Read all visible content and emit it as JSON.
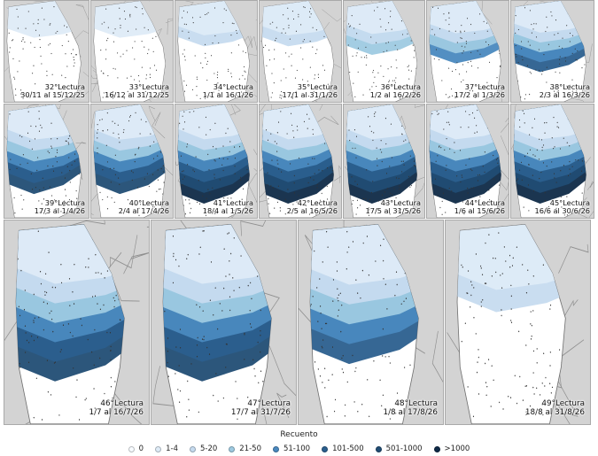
{
  "figure": {
    "rows": [
      [
        {
          "reading": "32°Lectura",
          "dates": "30/11 al 15/12/25",
          "level": 1
        },
        {
          "reading": "33°Lectura",
          "dates": "16/12 al 31/12/25",
          "level": 1
        },
        {
          "reading": "34°Lectura",
          "dates": "1/1 al 16/1/26",
          "level": 2
        },
        {
          "reading": "35°Lectura",
          "dates": "17/1 al 31/1/26",
          "level": 2
        },
        {
          "reading": "36°Lectura",
          "dates": "1/2 al 16/2/26",
          "level": 3
        },
        {
          "reading": "37°Lectura",
          "dates": "17/2 al 1/3/26",
          "level": 4
        },
        {
          "reading": "38°Lectura",
          "dates": "2/3 al 16/3/26",
          "level": 5
        }
      ],
      [
        {
          "reading": "39°Lectura",
          "dates": "17/3 al 1/4/26",
          "level": 6
        },
        {
          "reading": "40°Lectura",
          "dates": "2/4 al 17/4/26",
          "level": 6
        },
        {
          "reading": "41°Lectura",
          "dates": "18/4 al 1/5/26",
          "level": 7
        },
        {
          "reading": "42°Lectura",
          "dates": "2/5 al 16/5/26",
          "level": 7
        },
        {
          "reading": "43°Lectura",
          "dates": "17/5 al 31/5/26",
          "level": 7
        },
        {
          "reading": "44°Lectura",
          "dates": "1/6 al 15/6/26",
          "level": 7
        },
        {
          "reading": "45°Lectura",
          "dates": "16/6 al 30/6/26",
          "level": 7
        }
      ],
      [
        {
          "reading": "46°Lectura",
          "dates": "1/7 al 16/7/26",
          "level": 6
        },
        {
          "reading": "47°Lectura",
          "dates": "17/7 al 31/7/26",
          "level": 6
        },
        {
          "reading": "48°Lectura",
          "dates": "1/8 al 17/8/26",
          "level": 5
        },
        {
          "reading": "49°Lectura",
          "dates": "18/8 al 31/8/26",
          "level": 2
        }
      ]
    ]
  },
  "legend": {
    "title": "Recuento",
    "items": [
      {
        "label": "0",
        "color": "#f7fbff"
      },
      {
        "label": "1-4",
        "color": "#deebf7"
      },
      {
        "label": "5-20",
        "color": "#c6dbef"
      },
      {
        "label": "21-50",
        "color": "#9ecae1"
      },
      {
        "label": "51-100",
        "color": "#4a89bf"
      },
      {
        "label": "101-500",
        "color": "#2b5f8e"
      },
      {
        "label": "501-1000",
        "color": "#214d74"
      },
      {
        "label": ">1000",
        "color": "#0f2a47"
      }
    ]
  }
}
